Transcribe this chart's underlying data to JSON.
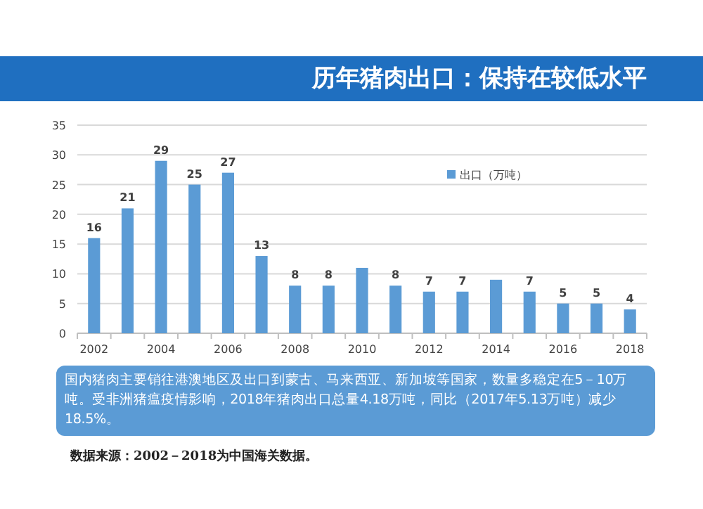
{
  "chart_data": {
    "type": "bar",
    "title": "历年猪肉出口：保持在较低水平",
    "categories": [
      "2002",
      null,
      "2004",
      null,
      "2006",
      null,
      "2008",
      null,
      "2010",
      null,
      "2012",
      null,
      "2014",
      null,
      "2016",
      null,
      "2018"
    ],
    "series": [
      {
        "name": "出口（万吨）",
        "color": "#5b9bd5",
        "values": [
          16,
          21,
          29,
          25,
          27,
          13,
          8,
          8,
          11,
          8,
          7,
          7,
          9,
          7,
          5,
          5,
          4
        ]
      }
    ],
    "value_labels": [
      "16",
      "21",
      "29",
      "25",
      "27",
      "13",
      "8",
      "8",
      null,
      "8",
      "7",
      "7",
      null,
      "7",
      "5",
      "5",
      "4"
    ],
    "ylim": [
      0,
      35
    ],
    "yticks": [
      0,
      5,
      10,
      15,
      20,
      25,
      30,
      35
    ],
    "grid": "y",
    "legend": "top right",
    "annotations": [
      "国内猪肉主要销往港澳地区及出口到蒙古、马来西亚、新加坡等国家，数量多稳定在5－10万吨。受非洲猪瘟疫情影响，2018年猪肉出口总量4.18万吨，同比（2017年5.13万吨）减少18.5%。",
      "数据来源：2002－2018为中国海关数据。"
    ]
  }
}
